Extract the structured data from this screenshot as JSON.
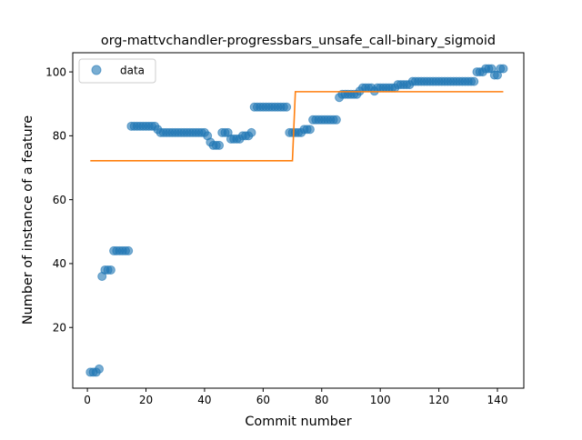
{
  "chart_data": {
    "type": "scatter",
    "title": "org-mattvchandler-progressbars_unsafe_call-binary_sigmoid",
    "xlabel": "Commit number",
    "ylabel": "Number of instance of a feature",
    "xlim": [
      -5,
      149
    ],
    "ylim": [
      1,
      106
    ],
    "xticks": [
      0,
      20,
      40,
      60,
      80,
      100,
      120,
      140
    ],
    "yticks": [
      20,
      40,
      60,
      80,
      100
    ],
    "grid": false,
    "legend": {
      "placement": "top-left",
      "entries": [
        "data"
      ]
    },
    "colors": {
      "data": "#1f77b4",
      "fit": "#ff7f0e"
    },
    "series": [
      {
        "name": "data",
        "kind": "scatter",
        "points": [
          [
            1,
            6
          ],
          [
            2,
            6
          ],
          [
            3,
            6
          ],
          [
            4,
            7
          ],
          [
            5,
            36
          ],
          [
            6,
            38
          ],
          [
            7,
            38
          ],
          [
            8,
            38
          ],
          [
            9,
            44
          ],
          [
            10,
            44
          ],
          [
            11,
            44
          ],
          [
            12,
            44
          ],
          [
            13,
            44
          ],
          [
            14,
            44
          ],
          [
            15,
            83
          ],
          [
            16,
            83
          ],
          [
            17,
            83
          ],
          [
            18,
            83
          ],
          [
            19,
            83
          ],
          [
            20,
            83
          ],
          [
            21,
            83
          ],
          [
            22,
            83
          ],
          [
            23,
            83
          ],
          [
            24,
            82
          ],
          [
            25,
            81
          ],
          [
            26,
            81
          ],
          [
            27,
            81
          ],
          [
            28,
            81
          ],
          [
            29,
            81
          ],
          [
            30,
            81
          ],
          [
            31,
            81
          ],
          [
            32,
            81
          ],
          [
            33,
            81
          ],
          [
            34,
            81
          ],
          [
            35,
            81
          ],
          [
            36,
            81
          ],
          [
            37,
            81
          ],
          [
            38,
            81
          ],
          [
            39,
            81
          ],
          [
            40,
            81
          ],
          [
            41,
            80
          ],
          [
            42,
            78
          ],
          [
            43,
            77
          ],
          [
            44,
            77
          ],
          [
            45,
            77
          ],
          [
            46,
            81
          ],
          [
            47,
            81
          ],
          [
            48,
            81
          ],
          [
            49,
            79
          ],
          [
            50,
            79
          ],
          [
            51,
            79
          ],
          [
            52,
            79
          ],
          [
            53,
            80
          ],
          [
            54,
            80
          ],
          [
            55,
            80
          ],
          [
            56,
            81
          ],
          [
            57,
            89
          ],
          [
            58,
            89
          ],
          [
            59,
            89
          ],
          [
            60,
            89
          ],
          [
            61,
            89
          ],
          [
            62,
            89
          ],
          [
            63,
            89
          ],
          [
            64,
            89
          ],
          [
            65,
            89
          ],
          [
            66,
            89
          ],
          [
            67,
            89
          ],
          [
            68,
            89
          ],
          [
            69,
            81
          ],
          [
            70,
            81
          ],
          [
            71,
            81
          ],
          [
            72,
            81
          ],
          [
            73,
            81
          ],
          [
            74,
            82
          ],
          [
            75,
            82
          ],
          [
            76,
            82
          ],
          [
            77,
            85
          ],
          [
            78,
            85
          ],
          [
            79,
            85
          ],
          [
            80,
            85
          ],
          [
            81,
            85
          ],
          [
            82,
            85
          ],
          [
            83,
            85
          ],
          [
            84,
            85
          ],
          [
            85,
            85
          ],
          [
            86,
            92
          ],
          [
            87,
            93
          ],
          [
            88,
            93
          ],
          [
            89,
            93
          ],
          [
            90,
            93
          ],
          [
            91,
            93
          ],
          [
            92,
            93
          ],
          [
            93,
            94
          ],
          [
            94,
            95
          ],
          [
            95,
            95
          ],
          [
            96,
            95
          ],
          [
            97,
            95
          ],
          [
            98,
            94
          ],
          [
            99,
            95
          ],
          [
            100,
            95
          ],
          [
            101,
            95
          ],
          [
            102,
            95
          ],
          [
            103,
            95
          ],
          [
            104,
            95
          ],
          [
            105,
            95
          ],
          [
            106,
            96
          ],
          [
            107,
            96
          ],
          [
            108,
            96
          ],
          [
            109,
            96
          ],
          [
            110,
            96
          ],
          [
            111,
            97
          ],
          [
            112,
            97
          ],
          [
            113,
            97
          ],
          [
            114,
            97
          ],
          [
            115,
            97
          ],
          [
            116,
            97
          ],
          [
            117,
            97
          ],
          [
            118,
            97
          ],
          [
            119,
            97
          ],
          [
            120,
            97
          ],
          [
            121,
            97
          ],
          [
            122,
            97
          ],
          [
            123,
            97
          ],
          [
            124,
            97
          ],
          [
            125,
            97
          ],
          [
            126,
            97
          ],
          [
            127,
            97
          ],
          [
            128,
            97
          ],
          [
            129,
            97
          ],
          [
            130,
            97
          ],
          [
            131,
            97
          ],
          [
            132,
            97
          ],
          [
            133,
            100
          ],
          [
            134,
            100
          ],
          [
            135,
            100
          ],
          [
            136,
            101
          ],
          [
            137,
            101
          ],
          [
            138,
            101
          ],
          [
            139,
            99
          ],
          [
            140,
            99
          ],
          [
            141,
            101
          ],
          [
            142,
            101
          ]
        ]
      },
      {
        "kind": "line",
        "points": [
          [
            1,
            72.2
          ],
          [
            70,
            72.2
          ],
          [
            71,
            93.8
          ],
          [
            142,
            93.8
          ]
        ]
      }
    ]
  }
}
